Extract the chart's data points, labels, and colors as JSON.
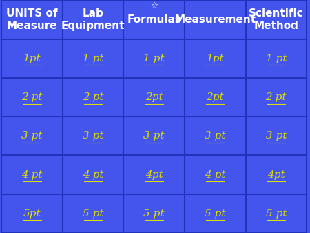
{
  "categories": [
    "UNITS of\nMeasure",
    "Lab\nEquipment",
    "Formulas",
    "Measurement",
    "Scientific\nMethod"
  ],
  "point_labels_col": [
    [
      "1pt",
      "2 pt",
      "3 pt",
      "4 pt",
      "5pt"
    ],
    [
      "1 pt",
      "2 pt",
      "3 pt",
      "4 pt",
      "5 pt"
    ],
    [
      "1 pt",
      "2pt",
      "3 pt",
      "4pt",
      "5 pt"
    ],
    [
      "1pt",
      "2pt",
      "3 pt",
      "4 pt",
      "5 pt"
    ],
    [
      "1 pt",
      "2 pt",
      "3 pt",
      "4pt",
      "5 pt"
    ]
  ],
  "bg_color": "#4455ee",
  "grid_color": "#2233bb",
  "text_color_header": "#ffffff",
  "text_color_points": "#dddd00",
  "header_fontsize": 11,
  "points_fontsize": 11,
  "star_col": 2,
  "n_cols": 5,
  "n_rows": 5
}
